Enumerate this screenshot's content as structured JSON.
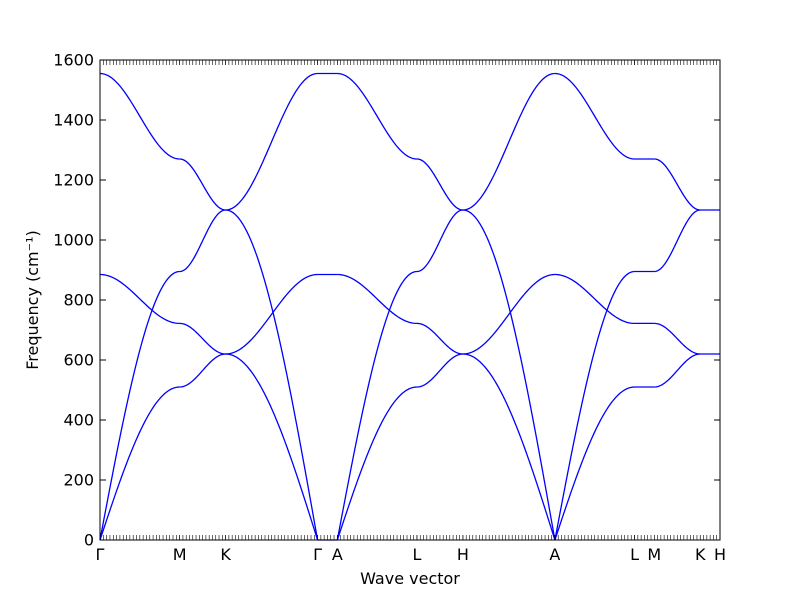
{
  "chart_data": {
    "type": "line",
    "xlabel": "Wave vector",
    "ylabel": "Frequency (cm⁻¹)",
    "ylim": [
      0,
      1600
    ],
    "yticks": [
      0,
      200,
      400,
      600,
      800,
      1000,
      1200,
      1400,
      1600
    ],
    "grid": false,
    "line_color": "#0000ff",
    "x_points": [
      {
        "label": "Γ",
        "x": 0.0
      },
      {
        "label": "M",
        "x": 1.0
      },
      {
        "label": "K",
        "x": 1.577
      },
      {
        "label": "Γ",
        "x": 2.732
      },
      {
        "label": "A",
        "x": 2.98
      },
      {
        "label": "L",
        "x": 3.98
      },
      {
        "label": "H",
        "x": 4.557
      },
      {
        "label": "A",
        "x": 5.712
      },
      {
        "label": "L",
        "x": 6.712
      },
      {
        "label": "M",
        "x": 6.96
      },
      {
        "label": "K",
        "x": 7.537
      },
      {
        "label": "H",
        "x": 7.785
      }
    ],
    "segments": [
      {
        "name": "Γ-M",
        "x_start": 0.0,
        "x_end": 1.0,
        "bands": [
          [
            0,
            895
          ],
          [
            0,
            510
          ],
          [
            885,
            722
          ],
          [
            1555,
            1270
          ]
        ]
      },
      {
        "name": "M-K",
        "x_start": 1.0,
        "x_end": 1.577,
        "bands": [
          [
            895,
            1100
          ],
          [
            510,
            620
          ],
          [
            722,
            620
          ],
          [
            1270,
            1100
          ]
        ]
      },
      {
        "name": "K-Γ",
        "x_start": 1.577,
        "x_end": 2.732,
        "bands": [
          [
            1100,
            0
          ],
          [
            620,
            0
          ],
          [
            620,
            885
          ],
          [
            1100,
            1555
          ]
        ]
      },
      {
        "name": "Γ-A",
        "x_start": 2.732,
        "x_end": 2.98,
        "bands": [
          [
            0,
            0
          ],
          [
            885,
            885
          ],
          [
            1555,
            1555
          ]
        ]
      },
      {
        "name": "A-L",
        "x_start": 2.98,
        "x_end": 3.98,
        "bands": [
          [
            0,
            895
          ],
          [
            0,
            510
          ],
          [
            885,
            722
          ],
          [
            1555,
            1270
          ]
        ]
      },
      {
        "name": "L-H",
        "x_start": 3.98,
        "x_end": 4.557,
        "bands": [
          [
            895,
            1100
          ],
          [
            510,
            620
          ],
          [
            722,
            620
          ],
          [
            1270,
            1100
          ]
        ]
      },
      {
        "name": "H-A",
        "x_start": 4.557,
        "x_end": 5.712,
        "bands": [
          [
            1100,
            0
          ],
          [
            620,
            0
          ],
          [
            620,
            885
          ],
          [
            1100,
            1555
          ]
        ]
      },
      {
        "name": "A-L",
        "x_start": 5.712,
        "x_end": 6.712,
        "bands": [
          [
            0,
            895
          ],
          [
            0,
            510
          ],
          [
            885,
            722
          ],
          [
            1555,
            1270
          ]
        ]
      },
      {
        "name": "L-M",
        "x_start": 6.712,
        "x_end": 6.96,
        "bands": [
          [
            895,
            895
          ],
          [
            510,
            510
          ],
          [
            722,
            722
          ],
          [
            1270,
            1270
          ]
        ]
      },
      {
        "name": "M-K",
        "x_start": 6.96,
        "x_end": 7.537,
        "bands": [
          [
            895,
            1100
          ],
          [
            510,
            620
          ],
          [
            722,
            620
          ],
          [
            1270,
            1100
          ]
        ]
      },
      {
        "name": "K-H",
        "x_start": 7.537,
        "x_end": 7.785,
        "bands": [
          [
            1100,
            1100
          ],
          [
            620,
            620
          ]
        ]
      }
    ]
  }
}
